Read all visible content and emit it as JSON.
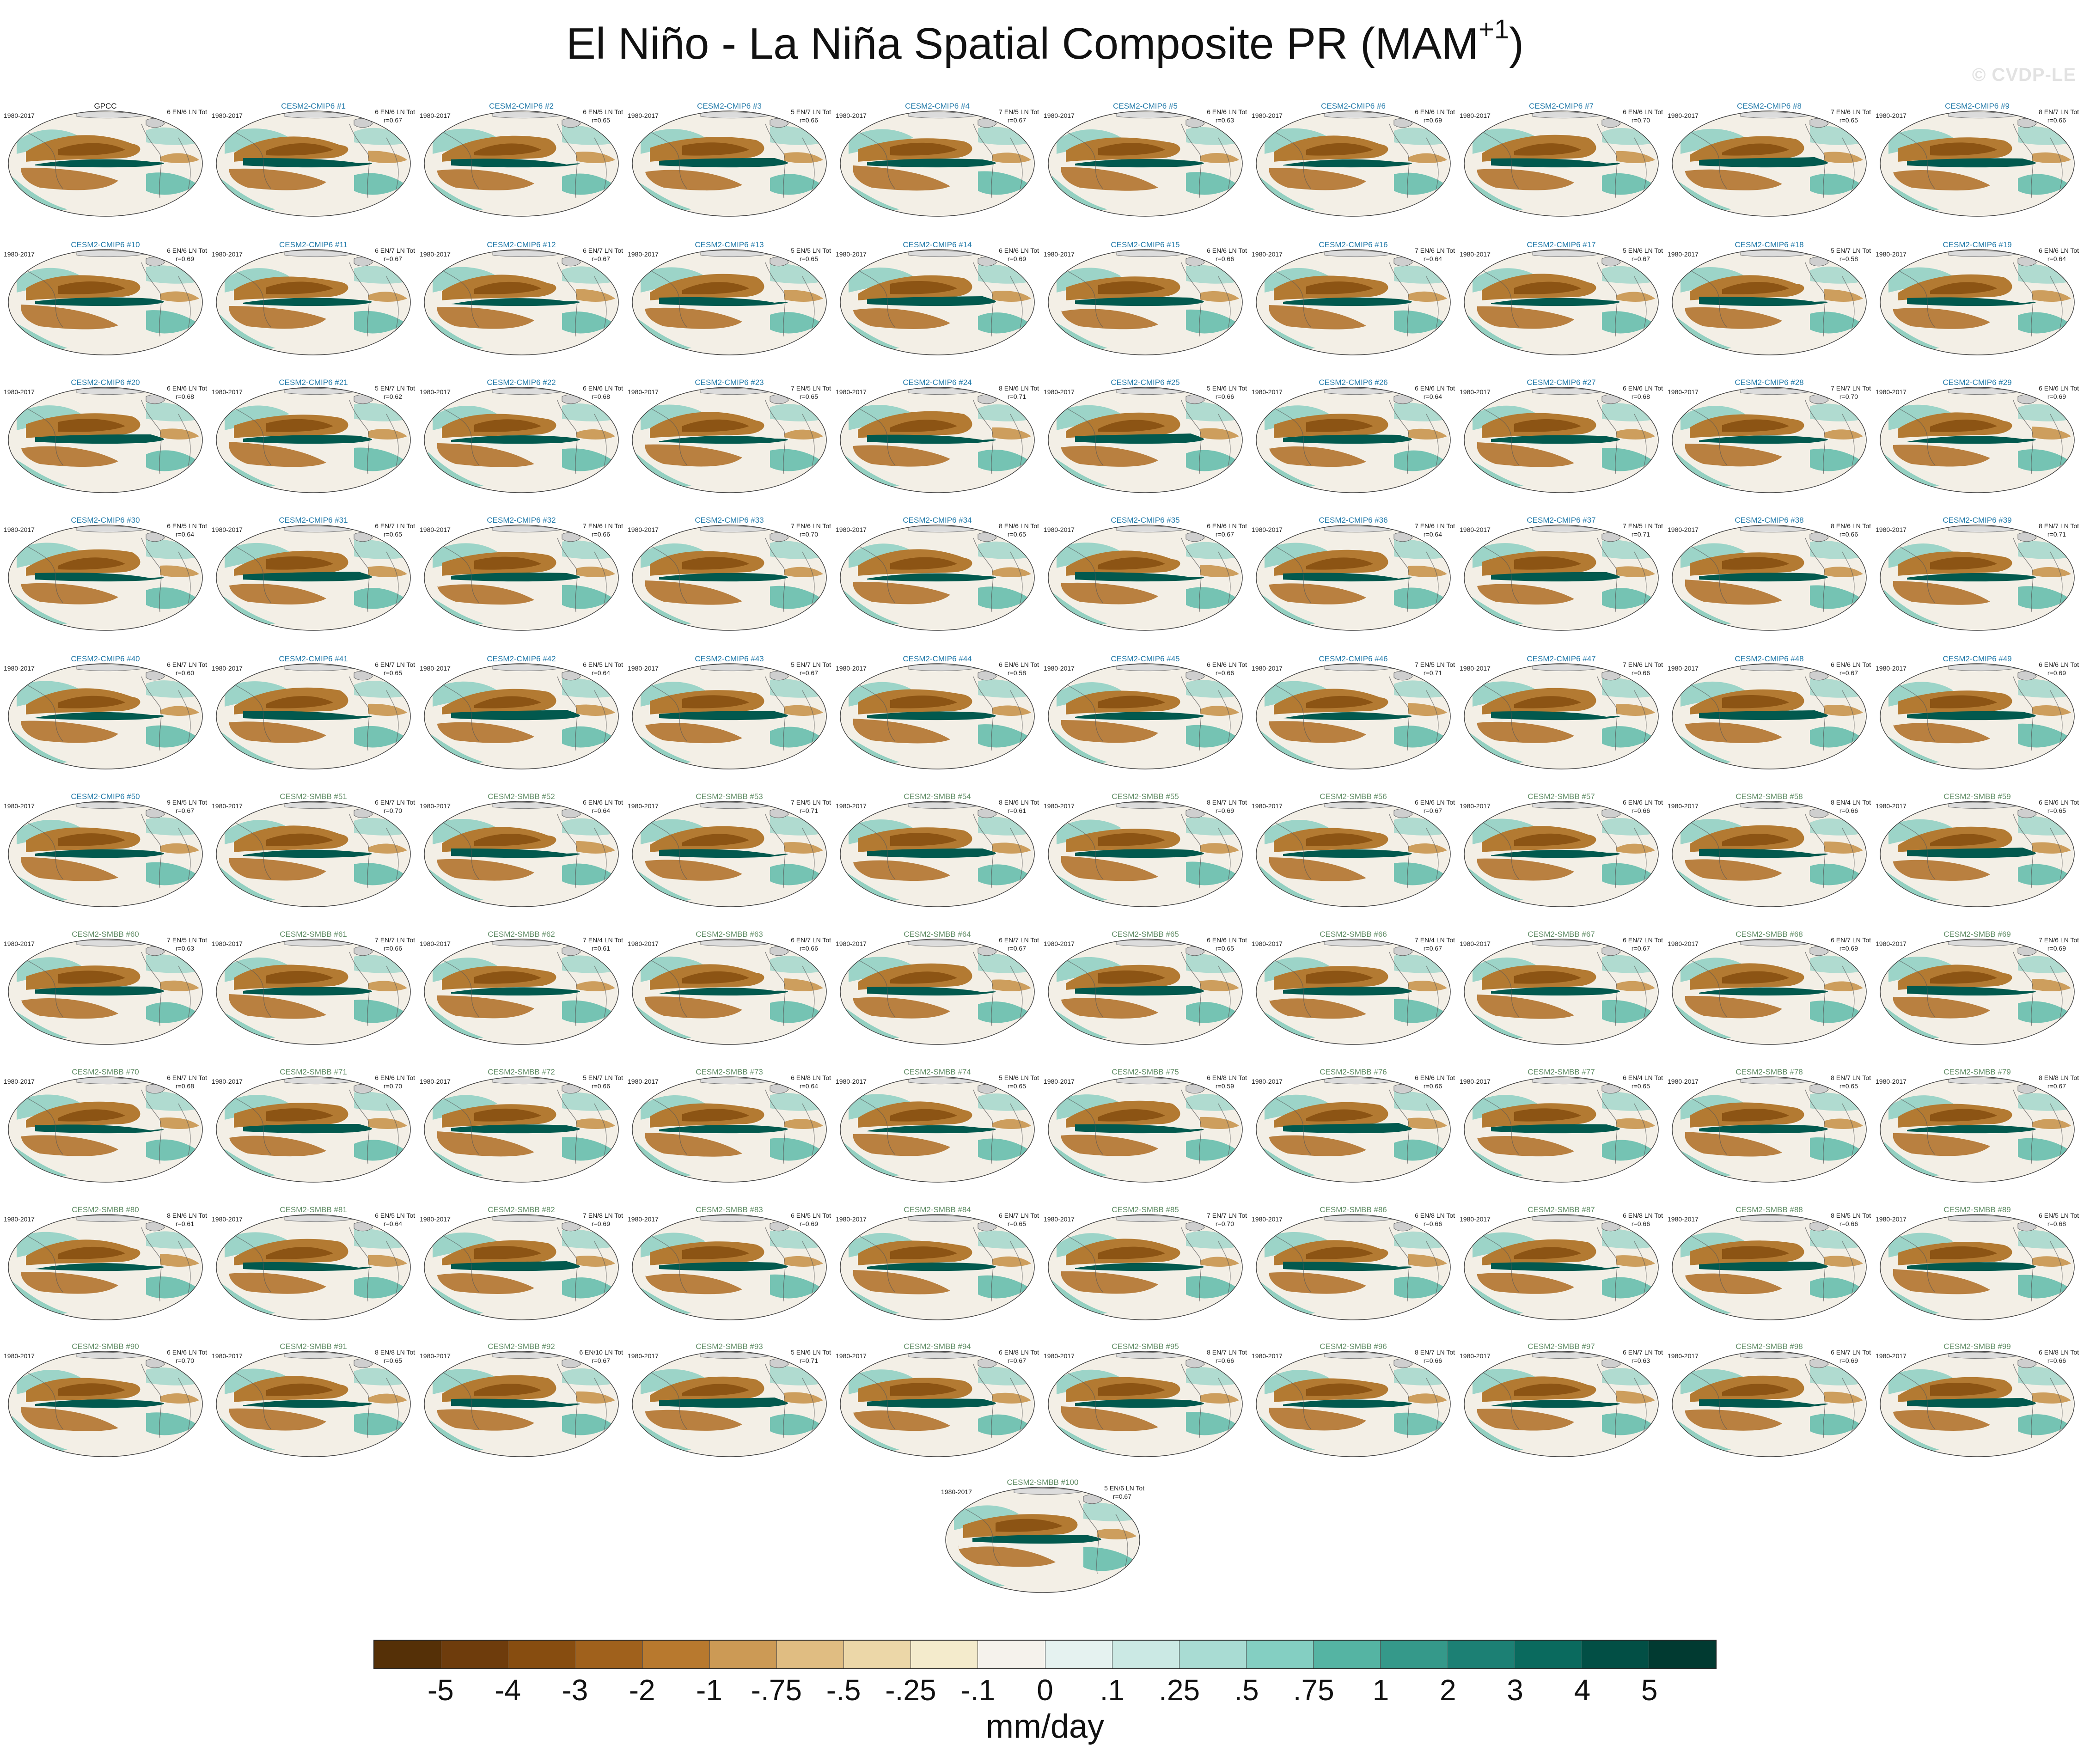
{
  "title": {
    "main": "El Niño - La Niña Spatial Composite PR (MAM",
    "sup": "+1",
    "close": ")"
  },
  "watermark": "© CVDP-LE",
  "colors": {
    "obs_title": "#111111",
    "cmip6_title": "#1f78a8",
    "smbb_title": "#5d8a62",
    "brown_anomaly": "#a0611c",
    "teal_anomaly": "#00695c"
  },
  "panels": [
    {
      "title": "GPCC",
      "group": "obs",
      "years": "1980-2017",
      "counts": "6 EN/6 LN Tot",
      "r": ""
    },
    {
      "title": "CESM2-CMIP6 #1",
      "group": "cmip6",
      "years": "1980-2017",
      "counts": "6 EN/6 LN Tot",
      "r": "r=0.67"
    },
    {
      "title": "CESM2-CMIP6 #2",
      "group": "cmip6",
      "years": "1980-2017",
      "counts": "6 EN/5 LN Tot",
      "r": "r=0.65"
    },
    {
      "title": "CESM2-CMIP6 #3",
      "group": "cmip6",
      "years": "1980-2017",
      "counts": "5 EN/7 LN Tot",
      "r": "r=0.66"
    },
    {
      "title": "CESM2-CMIP6 #4",
      "group": "cmip6",
      "years": "1980-2017",
      "counts": "7 EN/5 LN Tot",
      "r": "r=0.67"
    },
    {
      "title": "CESM2-CMIP6 #5",
      "group": "cmip6",
      "years": "1980-2017",
      "counts": "6 EN/6 LN Tot",
      "r": "r=0.63"
    },
    {
      "title": "CESM2-CMIP6 #6",
      "group": "cmip6",
      "years": "1980-2017",
      "counts": "6 EN/6 LN Tot",
      "r": "r=0.69"
    },
    {
      "title": "CESM2-CMIP6 #7",
      "group": "cmip6",
      "years": "1980-2017",
      "counts": "6 EN/6 LN Tot",
      "r": "r=0.70"
    },
    {
      "title": "CESM2-CMIP6 #8",
      "group": "cmip6",
      "years": "1980-2017",
      "counts": "7 EN/6 LN Tot",
      "r": "r=0.65"
    },
    {
      "title": "CESM2-CMIP6 #9",
      "group": "cmip6",
      "years": "1980-2017",
      "counts": "8 EN/7 LN Tot",
      "r": "r=0.66"
    },
    {
      "title": "CESM2-CMIP6 #10",
      "group": "cmip6",
      "years": "1980-2017",
      "counts": "6 EN/6 LN Tot",
      "r": "r=0.69"
    },
    {
      "title": "CESM2-CMIP6 #11",
      "group": "cmip6",
      "years": "1980-2017",
      "counts": "6 EN/7 LN Tot",
      "r": "r=0.67"
    },
    {
      "title": "CESM2-CMIP6 #12",
      "group": "cmip6",
      "years": "1980-2017",
      "counts": "6 EN/7 LN Tot",
      "r": "r=0.67"
    },
    {
      "title": "CESM2-CMIP6 #13",
      "group": "cmip6",
      "years": "1980-2017",
      "counts": "5 EN/5 LN Tot",
      "r": "r=0.65"
    },
    {
      "title": "CESM2-CMIP6 #14",
      "group": "cmip6",
      "years": "1980-2017",
      "counts": "6 EN/6 LN Tot",
      "r": "r=0.69"
    },
    {
      "title": "CESM2-CMIP6 #15",
      "group": "cmip6",
      "years": "1980-2017",
      "counts": "6 EN/6 LN Tot",
      "r": "r=0.66"
    },
    {
      "title": "CESM2-CMIP6 #16",
      "group": "cmip6",
      "years": "1980-2017",
      "counts": "7 EN/6 LN Tot",
      "r": "r=0.64"
    },
    {
      "title": "CESM2-CMIP6 #17",
      "group": "cmip6",
      "years": "1980-2017",
      "counts": "5 EN/6 LN Tot",
      "r": "r=0.67"
    },
    {
      "title": "CESM2-CMIP6 #18",
      "group": "cmip6",
      "years": "1980-2017",
      "counts": "5 EN/7 LN Tot",
      "r": "r=0.58"
    },
    {
      "title": "CESM2-CMIP6 #19",
      "group": "cmip6",
      "years": "1980-2017",
      "counts": "6 EN/6 LN Tot",
      "r": "r=0.64"
    },
    {
      "title": "CESM2-CMIP6 #20",
      "group": "cmip6",
      "years": "1980-2017",
      "counts": "6 EN/6 LN Tot",
      "r": "r=0.68"
    },
    {
      "title": "CESM2-CMIP6 #21",
      "group": "cmip6",
      "years": "1980-2017",
      "counts": "5 EN/7 LN Tot",
      "r": "r=0.62"
    },
    {
      "title": "CESM2-CMIP6 #22",
      "group": "cmip6",
      "years": "1980-2017",
      "counts": "6 EN/6 LN Tot",
      "r": "r=0.68"
    },
    {
      "title": "CESM2-CMIP6 #23",
      "group": "cmip6",
      "years": "1980-2017",
      "counts": "7 EN/5 LN Tot",
      "r": "r=0.65"
    },
    {
      "title": "CESM2-CMIP6 #24",
      "group": "cmip6",
      "years": "1980-2017",
      "counts": "8 EN/6 LN Tot",
      "r": "r=0.71"
    },
    {
      "title": "CESM2-CMIP6 #25",
      "group": "cmip6",
      "years": "1980-2017",
      "counts": "5 EN/6 LN Tot",
      "r": "r=0.66"
    },
    {
      "title": "CESM2-CMIP6 #26",
      "group": "cmip6",
      "years": "1980-2017",
      "counts": "6 EN/6 LN Tot",
      "r": "r=0.64"
    },
    {
      "title": "CESM2-CMIP6 #27",
      "group": "cmip6",
      "years": "1980-2017",
      "counts": "6 EN/6 LN Tot",
      "r": "r=0.68"
    },
    {
      "title": "CESM2-CMIP6 #28",
      "group": "cmip6",
      "years": "1980-2017",
      "counts": "7 EN/7 LN Tot",
      "r": "r=0.70"
    },
    {
      "title": "CESM2-CMIP6 #29",
      "group": "cmip6",
      "years": "1980-2017",
      "counts": "6 EN/6 LN Tot",
      "r": "r=0.69"
    },
    {
      "title": "CESM2-CMIP6 #30",
      "group": "cmip6",
      "years": "1980-2017",
      "counts": "6 EN/5 LN Tot",
      "r": "r=0.64"
    },
    {
      "title": "CESM2-CMIP6 #31",
      "group": "cmip6",
      "years": "1980-2017",
      "counts": "6 EN/7 LN Tot",
      "r": "r=0.65"
    },
    {
      "title": "CESM2-CMIP6 #32",
      "group": "cmip6",
      "years": "1980-2017",
      "counts": "7 EN/6 LN Tot",
      "r": "r=0.66"
    },
    {
      "title": "CESM2-CMIP6 #33",
      "group": "cmip6",
      "years": "1980-2017",
      "counts": "7 EN/6 LN Tot",
      "r": "r=0.70"
    },
    {
      "title": "CESM2-CMIP6 #34",
      "group": "cmip6",
      "years": "1980-2017",
      "counts": "8 EN/6 LN Tot",
      "r": "r=0.65"
    },
    {
      "title": "CESM2-CMIP6 #35",
      "group": "cmip6",
      "years": "1980-2017",
      "counts": "6 EN/6 LN Tot",
      "r": "r=0.67"
    },
    {
      "title": "CESM2-CMIP6 #36",
      "group": "cmip6",
      "years": "1980-2017",
      "counts": "7 EN/6 LN Tot",
      "r": "r=0.64"
    },
    {
      "title": "CESM2-CMIP6 #37",
      "group": "cmip6",
      "years": "1980-2017",
      "counts": "7 EN/5 LN Tot",
      "r": "r=0.71"
    },
    {
      "title": "CESM2-CMIP6 #38",
      "group": "cmip6",
      "years": "1980-2017",
      "counts": "8 EN/6 LN Tot",
      "r": "r=0.66"
    },
    {
      "title": "CESM2-CMIP6 #39",
      "group": "cmip6",
      "years": "1980-2017",
      "counts": "8 EN/7 LN Tot",
      "r": "r=0.71"
    },
    {
      "title": "CESM2-CMIP6 #40",
      "group": "cmip6",
      "years": "1980-2017",
      "counts": "6 EN/7 LN Tot",
      "r": "r=0.60"
    },
    {
      "title": "CESM2-CMIP6 #41",
      "group": "cmip6",
      "years": "1980-2017",
      "counts": "6 EN/7 LN Tot",
      "r": "r=0.65"
    },
    {
      "title": "CESM2-CMIP6 #42",
      "group": "cmip6",
      "years": "1980-2017",
      "counts": "6 EN/5 LN Tot",
      "r": "r=0.64"
    },
    {
      "title": "CESM2-CMIP6 #43",
      "group": "cmip6",
      "years": "1980-2017",
      "counts": "5 EN/7 LN Tot",
      "r": "r=0.67"
    },
    {
      "title": "CESM2-CMIP6 #44",
      "group": "cmip6",
      "years": "1980-2017",
      "counts": "6 EN/6 LN Tot",
      "r": "r=0.58"
    },
    {
      "title": "CESM2-CMIP6 #45",
      "group": "cmip6",
      "years": "1980-2017",
      "counts": "6 EN/6 LN Tot",
      "r": "r=0.66"
    },
    {
      "title": "CESM2-CMIP6 #46",
      "group": "cmip6",
      "years": "1980-2017",
      "counts": "7 EN/5 LN Tot",
      "r": "r=0.71"
    },
    {
      "title": "CESM2-CMIP6 #47",
      "group": "cmip6",
      "years": "1980-2017",
      "counts": "7 EN/6 LN Tot",
      "r": "r=0.66"
    },
    {
      "title": "CESM2-CMIP6 #48",
      "group": "cmip6",
      "years": "1980-2017",
      "counts": "6 EN/6 LN Tot",
      "r": "r=0.67"
    },
    {
      "title": "CESM2-CMIP6 #49",
      "group": "cmip6",
      "years": "1980-2017",
      "counts": "6 EN/6 LN Tot",
      "r": "r=0.69"
    },
    {
      "title": "CESM2-CMIP6 #50",
      "group": "cmip6",
      "years": "1980-2017",
      "counts": "9 EN/5 LN Tot",
      "r": "r=0.67"
    },
    {
      "title": "CESM2-SMBB #51",
      "group": "smbb",
      "years": "1980-2017",
      "counts": "6 EN/7 LN Tot",
      "r": "r=0.70"
    },
    {
      "title": "CESM2-SMBB #52",
      "group": "smbb",
      "years": "1980-2017",
      "counts": "6 EN/6 LN Tot",
      "r": "r=0.64"
    },
    {
      "title": "CESM2-SMBB #53",
      "group": "smbb",
      "years": "1980-2017",
      "counts": "7 EN/5 LN Tot",
      "r": "r=0.71"
    },
    {
      "title": "CESM2-SMBB #54",
      "group": "smbb",
      "years": "1980-2017",
      "counts": "8 EN/6 LN Tot",
      "r": "r=0.61"
    },
    {
      "title": "CESM2-SMBB #55",
      "group": "smbb",
      "years": "1980-2017",
      "counts": "8 EN/7 LN Tot",
      "r": "r=0.69"
    },
    {
      "title": "CESM2-SMBB #56",
      "group": "smbb",
      "years": "1980-2017",
      "counts": "6 EN/6 LN Tot",
      "r": "r=0.67"
    },
    {
      "title": "CESM2-SMBB #57",
      "group": "smbb",
      "years": "1980-2017",
      "counts": "6 EN/6 LN Tot",
      "r": "r=0.66"
    },
    {
      "title": "CESM2-SMBB #58",
      "group": "smbb",
      "years": "1980-2017",
      "counts": "8 EN/4 LN Tot",
      "r": "r=0.66"
    },
    {
      "title": "CESM2-SMBB #59",
      "group": "smbb",
      "years": "1980-2017",
      "counts": "6 EN/6 LN Tot",
      "r": "r=0.65"
    },
    {
      "title": "CESM2-SMBB #60",
      "group": "smbb",
      "years": "1980-2017",
      "counts": "7 EN/5 LN Tot",
      "r": "r=0.63"
    },
    {
      "title": "CESM2-SMBB #61",
      "group": "smbb",
      "years": "1980-2017",
      "counts": "7 EN/7 LN Tot",
      "r": "r=0.66"
    },
    {
      "title": "CESM2-SMBB #62",
      "group": "smbb",
      "years": "1980-2017",
      "counts": "7 EN/4 LN Tot",
      "r": "r=0.61"
    },
    {
      "title": "CESM2-SMBB #63",
      "group": "smbb",
      "years": "1980-2017",
      "counts": "6 EN/7 LN Tot",
      "r": "r=0.66"
    },
    {
      "title": "CESM2-SMBB #64",
      "group": "smbb",
      "years": "1980-2017",
      "counts": "6 EN/7 LN Tot",
      "r": "r=0.67"
    },
    {
      "title": "CESM2-SMBB #65",
      "group": "smbb",
      "years": "1980-2017",
      "counts": "6 EN/6 LN Tot",
      "r": "r=0.65"
    },
    {
      "title": "CESM2-SMBB #66",
      "group": "smbb",
      "years": "1980-2017",
      "counts": "7 EN/4 LN Tot",
      "r": "r=0.67"
    },
    {
      "title": "CESM2-SMBB #67",
      "group": "smbb",
      "years": "1980-2017",
      "counts": "6 EN/7 LN Tot",
      "r": "r=0.67"
    },
    {
      "title": "CESM2-SMBB #68",
      "group": "smbb",
      "years": "1980-2017",
      "counts": "6 EN/7 LN Tot",
      "r": "r=0.69"
    },
    {
      "title": "CESM2-SMBB #69",
      "group": "smbb",
      "years": "1980-2017",
      "counts": "7 EN/6 LN Tot",
      "r": "r=0.69"
    },
    {
      "title": "CESM2-SMBB #70",
      "group": "smbb",
      "years": "1980-2017",
      "counts": "6 EN/7 LN Tot",
      "r": "r=0.68"
    },
    {
      "title": "CESM2-SMBB #71",
      "group": "smbb",
      "years": "1980-2017",
      "counts": "6 EN/6 LN Tot",
      "r": "r=0.70"
    },
    {
      "title": "CESM2-SMBB #72",
      "group": "smbb",
      "years": "1980-2017",
      "counts": "5 EN/7 LN Tot",
      "r": "r=0.66"
    },
    {
      "title": "CESM2-SMBB #73",
      "group": "smbb",
      "years": "1980-2017",
      "counts": "6 EN/8 LN Tot",
      "r": "r=0.64"
    },
    {
      "title": "CESM2-SMBB #74",
      "group": "smbb",
      "years": "1980-2017",
      "counts": "5 EN/6 LN Tot",
      "r": "r=0.65"
    },
    {
      "title": "CESM2-SMBB #75",
      "group": "smbb",
      "years": "1980-2017",
      "counts": "6 EN/8 LN Tot",
      "r": "r=0.59"
    },
    {
      "title": "CESM2-SMBB #76",
      "group": "smbb",
      "years": "1980-2017",
      "counts": "6 EN/6 LN Tot",
      "r": "r=0.66"
    },
    {
      "title": "CESM2-SMBB #77",
      "group": "smbb",
      "years": "1980-2017",
      "counts": "6 EN/4 LN Tot",
      "r": "r=0.65"
    },
    {
      "title": "CESM2-SMBB #78",
      "group": "smbb",
      "years": "1980-2017",
      "counts": "8 EN/7 LN Tot",
      "r": "r=0.65"
    },
    {
      "title": "CESM2-SMBB #79",
      "group": "smbb",
      "years": "1980-2017",
      "counts": "8 EN/8 LN Tot",
      "r": "r=0.67"
    },
    {
      "title": "CESM2-SMBB #80",
      "group": "smbb",
      "years": "1980-2017",
      "counts": "8 EN/6 LN Tot",
      "r": "r=0.61"
    },
    {
      "title": "CESM2-SMBB #81",
      "group": "smbb",
      "years": "1980-2017",
      "counts": "6 EN/5 LN Tot",
      "r": "r=0.64"
    },
    {
      "title": "CESM2-SMBB #82",
      "group": "smbb",
      "years": "1980-2017",
      "counts": "7 EN/8 LN Tot",
      "r": "r=0.69"
    },
    {
      "title": "CESM2-SMBB #83",
      "group": "smbb",
      "years": "1980-2017",
      "counts": "6 EN/5 LN Tot",
      "r": "r=0.69"
    },
    {
      "title": "CESM2-SMBB #84",
      "group": "smbb",
      "years": "1980-2017",
      "counts": "6 EN/7 LN Tot",
      "r": "r=0.65"
    },
    {
      "title": "CESM2-SMBB #85",
      "group": "smbb",
      "years": "1980-2017",
      "counts": "7 EN/7 LN Tot",
      "r": "r=0.70"
    },
    {
      "title": "CESM2-SMBB #86",
      "group": "smbb",
      "years": "1980-2017",
      "counts": "6 EN/8 LN Tot",
      "r": "r=0.66"
    },
    {
      "title": "CESM2-SMBB #87",
      "group": "smbb",
      "years": "1980-2017",
      "counts": "6 EN/8 LN Tot",
      "r": "r=0.66"
    },
    {
      "title": "CESM2-SMBB #88",
      "group": "smbb",
      "years": "1980-2017",
      "counts": "8 EN/5 LN Tot",
      "r": "r=0.66"
    },
    {
      "title": "CESM2-SMBB #89",
      "group": "smbb",
      "years": "1980-2017",
      "counts": "6 EN/5 LN Tot",
      "r": "r=0.68"
    },
    {
      "title": "CESM2-SMBB #90",
      "group": "smbb",
      "years": "1980-2017",
      "counts": "6 EN/6 LN Tot",
      "r": "r=0.70"
    },
    {
      "title": "CESM2-SMBB #91",
      "group": "smbb",
      "years": "1980-2017",
      "counts": "8 EN/8 LN Tot",
      "r": "r=0.65"
    },
    {
      "title": "CESM2-SMBB #92",
      "group": "smbb",
      "years": "1980-2017",
      "counts": "6 EN/10 LN Tot",
      "r": "r=0.67"
    },
    {
      "title": "CESM2-SMBB #93",
      "group": "smbb",
      "years": "1980-2017",
      "counts": "5 EN/6 LN Tot",
      "r": "r=0.71"
    },
    {
      "title": "CESM2-SMBB #94",
      "group": "smbb",
      "years": "1980-2017",
      "counts": "6 EN/8 LN Tot",
      "r": "r=0.67"
    },
    {
      "title": "CESM2-SMBB #95",
      "group": "smbb",
      "years": "1980-2017",
      "counts": "8 EN/7 LN Tot",
      "r": "r=0.66"
    },
    {
      "title": "CESM2-SMBB #96",
      "group": "smbb",
      "years": "1980-2017",
      "counts": "8 EN/7 LN Tot",
      "r": "r=0.66"
    },
    {
      "title": "CESM2-SMBB #97",
      "group": "smbb",
      "years": "1980-2017",
      "counts": "6 EN/7 LN Tot",
      "r": "r=0.63"
    },
    {
      "title": "CESM2-SMBB #98",
      "group": "smbb",
      "years": "1980-2017",
      "counts": "6 EN/7 LN Tot",
      "r": "r=0.69"
    },
    {
      "title": "CESM2-SMBB #99",
      "group": "smbb",
      "years": "1980-2017",
      "counts": "6 EN/8 LN Tot",
      "r": "r=0.66"
    },
    {
      "title": "CESM2-SMBB #100",
      "group": "smbb",
      "years": "1980-2017",
      "counts": "5 EN/6 LN Tot",
      "r": "r=0.67"
    }
  ],
  "colorbar": {
    "units": "mm/day",
    "labels": [
      "-5",
      "-4",
      "-3",
      "-2",
      "-1",
      "-.75",
      "-.5",
      "-.25",
      "-.1",
      "0",
      ".1",
      ".25",
      ".5",
      ".75",
      "1",
      "2",
      "3",
      "4",
      "5"
    ],
    "colors": [
      "#553007",
      "#6e3c0c",
      "#874d10",
      "#a0611c",
      "#b8792e",
      "#cc9a55",
      "#e0bd82",
      "#ecd7a8",
      "#f4ebcc",
      "#f5f2ec",
      "#e5f2f0",
      "#cbe9e4",
      "#a9dcd3",
      "#84cfc2",
      "#55b4a3",
      "#35998a",
      "#1c8074",
      "#0a6a5e",
      "#024f45",
      "#013a31"
    ]
  }
}
